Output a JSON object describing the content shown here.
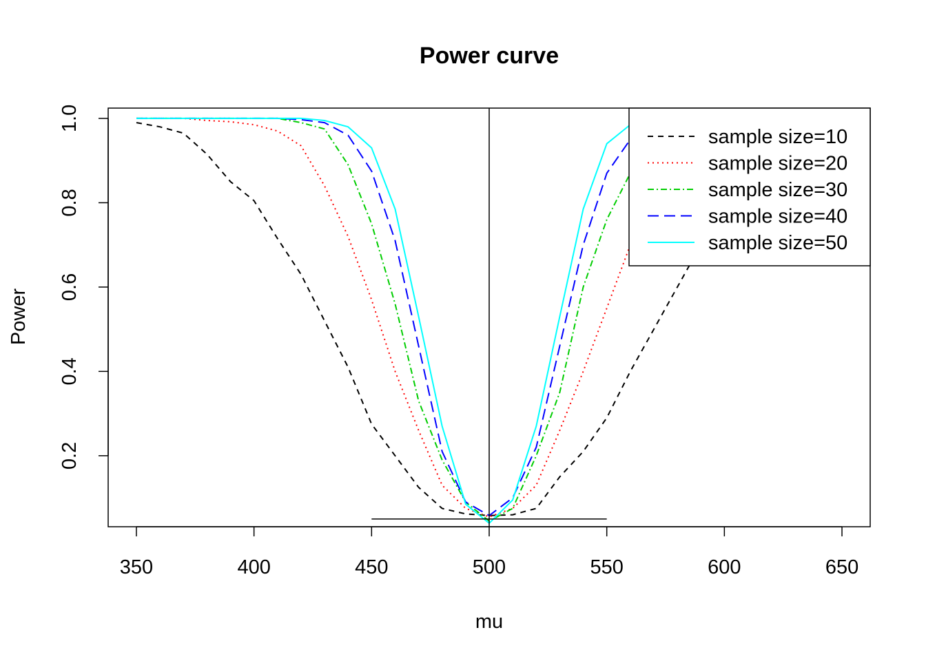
{
  "chart_data": {
    "type": "line",
    "title": "Power curve",
    "xlabel": "mu",
    "ylabel": "Power",
    "xlim": [
      338,
      662
    ],
    "ylim": [
      0.0316,
      1.0244
    ],
    "xticks": [
      350,
      400,
      450,
      500,
      550,
      600,
      650
    ],
    "yticks": [
      0.2,
      0.4,
      0.6,
      0.8,
      1.0
    ],
    "xtick_labels": [
      "350",
      "400",
      "450",
      "500",
      "550",
      "600",
      "650"
    ],
    "ytick_labels": [
      "0.2",
      "0.4",
      "0.6",
      "0.8",
      "1.0"
    ],
    "legend_position": "top-right",
    "x": [
      350,
      360,
      370,
      380,
      390,
      400,
      410,
      420,
      430,
      440,
      450,
      460,
      470,
      480,
      490,
      500,
      510,
      520,
      530,
      540,
      550,
      560,
      570,
      580,
      590,
      600,
      610,
      620,
      630,
      640,
      650
    ],
    "series": [
      {
        "name": "sample size=10",
        "color": "#000000",
        "dash": "8,7",
        "values": [
          0.99,
          0.98,
          0.965,
          0.915,
          0.85,
          0.805,
          0.715,
          0.63,
          0.52,
          0.41,
          0.275,
          0.2,
          0.125,
          0.075,
          0.062,
          0.058,
          0.06,
          0.075,
          0.15,
          0.21,
          0.29,
          0.4,
          0.5,
          0.6,
          0.7,
          0.8,
          0.88,
          0.93,
          0.97,
          0.99,
          1.0
        ]
      },
      {
        "name": "sample size=20",
        "color": "#ff0000",
        "dash": "2,5",
        "values": [
          1.0,
          1.0,
          1.0,
          0.995,
          0.992,
          0.985,
          0.97,
          0.935,
          0.84,
          0.72,
          0.57,
          0.4,
          0.26,
          0.13,
          0.075,
          0.055,
          0.075,
          0.13,
          0.26,
          0.4,
          0.55,
          0.7,
          0.82,
          0.9,
          0.95,
          0.98,
          0.99,
          1.0,
          1.0,
          1.0,
          1.0
        ]
      },
      {
        "name": "sample size=30",
        "color": "#00cd00",
        "dash": "9,4,2,4",
        "values": [
          1.0,
          1.0,
          1.0,
          1.0,
          1.0,
          1.0,
          1.0,
          0.99,
          0.975,
          0.89,
          0.75,
          0.56,
          0.33,
          0.19,
          0.09,
          0.045,
          0.075,
          0.2,
          0.35,
          0.6,
          0.76,
          0.87,
          0.95,
          0.98,
          1.0,
          1.0,
          1.0,
          1.0,
          1.0,
          1.0,
          1.0
        ]
      },
      {
        "name": "sample size=40",
        "color": "#0000ff",
        "dash": "16,8",
        "values": [
          1.0,
          1.0,
          1.0,
          1.0,
          1.0,
          1.0,
          1.0,
          0.997,
          0.99,
          0.96,
          0.875,
          0.71,
          0.46,
          0.21,
          0.09,
          0.058,
          0.1,
          0.22,
          0.46,
          0.7,
          0.87,
          0.95,
          0.985,
          1.0,
          1.0,
          1.0,
          1.0,
          1.0,
          1.0,
          1.0,
          1.0
        ]
      },
      {
        "name": "sample size=50",
        "color": "#00ffff",
        "dash": "",
        "values": [
          1.0,
          1.0,
          1.0,
          1.0,
          1.0,
          1.0,
          1.0,
          1.0,
          0.995,
          0.98,
          0.93,
          0.785,
          0.53,
          0.27,
          0.085,
          0.04,
          0.095,
          0.27,
          0.53,
          0.785,
          0.94,
          0.985,
          1.0,
          1.0,
          1.0,
          1.0,
          1.0,
          1.0,
          1.0,
          1.0,
          1.0
        ]
      }
    ],
    "reference_lines": {
      "vertical_x": 500,
      "horizontal": {
        "y": 0.05,
        "x_from": 450,
        "x_to": 550
      }
    }
  }
}
